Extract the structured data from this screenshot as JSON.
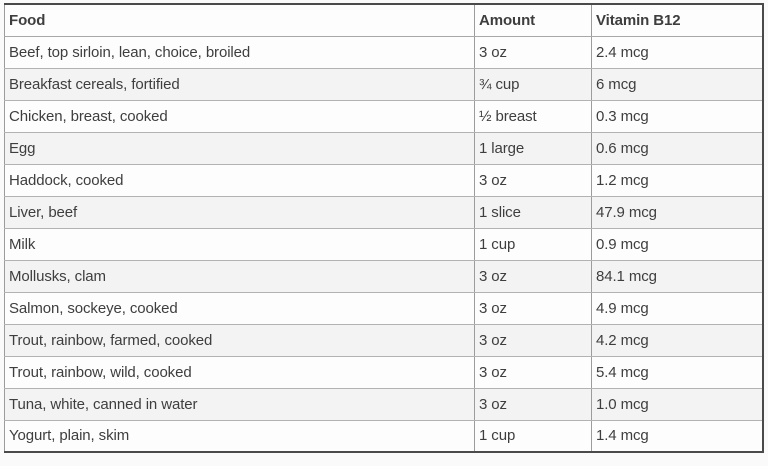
{
  "table": {
    "columns": [
      "Food",
      "Amount",
      "Vitamin B12"
    ],
    "rows": [
      [
        "Beef, top sirloin, lean, choice, broiled",
        "3 oz",
        "2.4 mcg"
      ],
      [
        "Breakfast cereals, fortified",
        "¾ cup",
        "6 mcg"
      ],
      [
        "Chicken, breast, cooked",
        "½ breast",
        "0.3 mcg"
      ],
      [
        "Egg",
        "1 large",
        "0.6 mcg"
      ],
      [
        "Haddock, cooked",
        "3 oz",
        "1.2 mcg"
      ],
      [
        "Liver, beef",
        "1 slice",
        "47.9 mcg"
      ],
      [
        "Milk",
        "1 cup",
        "0.9 mcg"
      ],
      [
        "Mollusks, clam",
        "3 oz",
        "84.1 mcg"
      ],
      [
        "Salmon, sockeye, cooked",
        "3 oz",
        "4.9 mcg"
      ],
      [
        "Trout, rainbow, farmed, cooked",
        "3 oz",
        "4.2 mcg"
      ],
      [
        "Trout, rainbow, wild, cooked",
        "3 oz",
        "5.4 mcg"
      ],
      [
        "Tuna, white, canned in water",
        "3 oz",
        "1.0 mcg"
      ],
      [
        "Yogurt, plain, skim",
        "1 cup",
        "1.4 mcg"
      ]
    ],
    "colors": {
      "text": "#3e3e3e",
      "outer_border": "#4a4a4a",
      "inner_border_h": "#b2b2b2",
      "inner_border_v": "#9c9c9c",
      "row_odd_bg": "#fdfdfd",
      "row_even_bg": "#f3f3f3",
      "page_bg": "#fafafa"
    }
  }
}
